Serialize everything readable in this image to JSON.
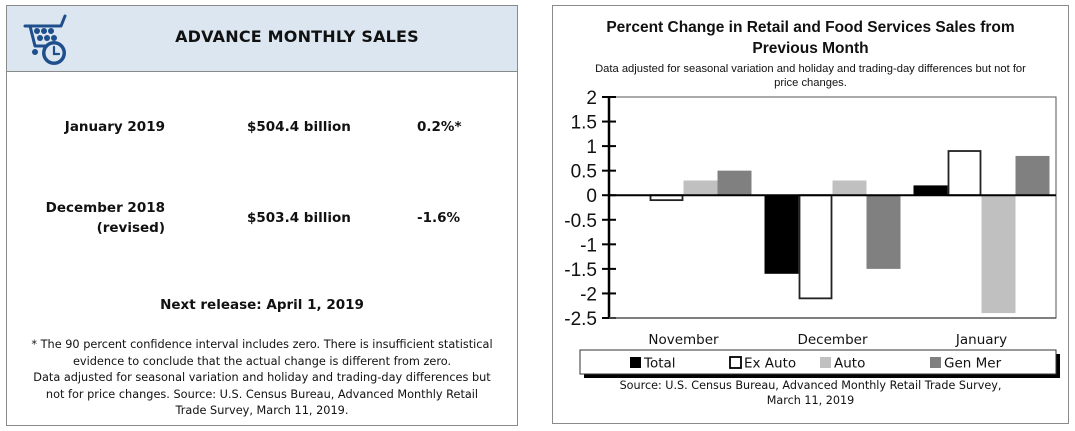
{
  "left_panel": {
    "header": {
      "icon": "shopping-cart-clock-icon",
      "title": "ADVANCE MONTHLY SALES"
    },
    "rows": [
      {
        "period_line1": "January 2019",
        "period_line2": "",
        "amount": "$504.4 billion",
        "percent_change": "0.2%*"
      },
      {
        "period_line1": "December 2018",
        "period_line2": "(revised)",
        "amount": "$503.4 billion",
        "percent_change": "-1.6%"
      }
    ],
    "next_release": "Next release: April 1, 2019",
    "footnote_lines": [
      "* The 90 percent confidence interval includes zero. There is insufficient statistical",
      "evidence to conclude that the actual change is different from zero.",
      "Data adjusted for seasonal variation and holiday and trading-day differences but",
      "not for price changes. Source: U.S. Census Bureau, Advanced Monthly Retail",
      "Trade Survey, March 11, 2019."
    ]
  },
  "right_panel": {
    "title_lines": [
      "Percent Change in Retail and Food Services Sales from",
      "Previous Month"
    ],
    "subtitle_lines": [
      "Data adjusted for seasonal variation and holiday and trading-day differences but not for",
      "price changes."
    ],
    "source_lines": [
      "Source: U.S. Census Bureau, Advanced Monthly Retail Trade Survey,",
      "March 11, 2019"
    ]
  },
  "chart_data": {
    "type": "bar",
    "title": "Percent Change in Retail and Food Services Sales from Previous Month",
    "subtitle": "Data adjusted for seasonal variation and holiday and trading-day differences but not for price changes.",
    "xlabel": "",
    "ylabel": "",
    "categories": [
      "November",
      "December",
      "January"
    ],
    "series": [
      {
        "name": "Total",
        "values": [
          0.0,
          -1.6,
          0.2
        ],
        "color": "#000000",
        "outline": false
      },
      {
        "name": "Ex Auto",
        "values": [
          -0.1,
          -2.1,
          0.9
        ],
        "color": "#ffffff",
        "outline": true
      },
      {
        "name": "Auto",
        "values": [
          0.3,
          0.3,
          -2.4
        ],
        "color": "#c0c0c0",
        "outline": false
      },
      {
        "name": "Gen Mer",
        "values": [
          0.5,
          -1.5,
          0.8
        ],
        "color": "#808080",
        "outline": false
      }
    ],
    "ylim": [
      -2.5,
      2
    ],
    "yticks": [
      2,
      1.5,
      1,
      0.5,
      0,
      -0.5,
      -1,
      -1.5,
      -2,
      -2.5
    ],
    "ytick_labels": [
      "2",
      "1.5",
      "1",
      "0.5",
      "0",
      "-0.5",
      "-1",
      "-1.5",
      "-2",
      "-2.5"
    ],
    "grid": false,
    "legend_position": "bottom",
    "source": "Source: U.S. Census Bureau, Advanced Monthly Retail Trade Survey, March 11, 2019"
  }
}
